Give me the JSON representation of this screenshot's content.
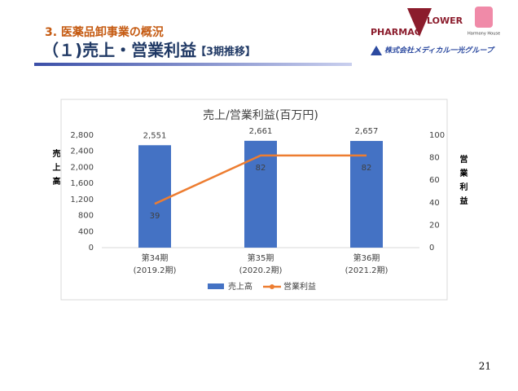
{
  "header": {
    "section": "3. 医薬品卸事業の概況",
    "title": "（１)売上・営業利益",
    "subtitle": "【3期推移】"
  },
  "logos": {
    "pharmacy": "PHARMAC",
    "flower": "LOWER",
    "harmony": "Harmony House",
    "group": "株式会社メディカル一光グループ"
  },
  "page_number": "21",
  "chart_data": {
    "type": "bar_line",
    "title": "売上/営業利益(百万円)",
    "categories": [
      "第34期\n(2019.2期)",
      "第35期\n(2020.2期)",
      "第36期\n(2021.2期)"
    ],
    "y_label": "売上高",
    "y2_label": "営業利益",
    "ylim": [
      0,
      2800
    ],
    "yticks": [
      0,
      400,
      800,
      {
        "value": 1200,
        "label": "1,200"
      },
      {
        "value": 1600,
        "label": "1,600"
      },
      {
        "value": 2000,
        "label": "2,000"
      },
      {
        "value": 2400,
        "label": "2,400"
      },
      {
        "value": 2800,
        "label": "2,800"
      }
    ],
    "y2lim": [
      0,
      100
    ],
    "y2ticks": [
      0,
      20,
      40,
      60,
      80,
      100
    ],
    "series": [
      {
        "name": "売上高",
        "type": "bar",
        "color": "#4472c4",
        "values": [
          2551,
          2661,
          2657
        ],
        "value_labels": [
          "2,551",
          "2,661",
          "2,657"
        ]
      },
      {
        "name": "営業利益",
        "type": "line",
        "axis": "y2",
        "color": "#ed7d31",
        "values": [
          39,
          82,
          82
        ]
      }
    ],
    "legend": "bottom"
  }
}
